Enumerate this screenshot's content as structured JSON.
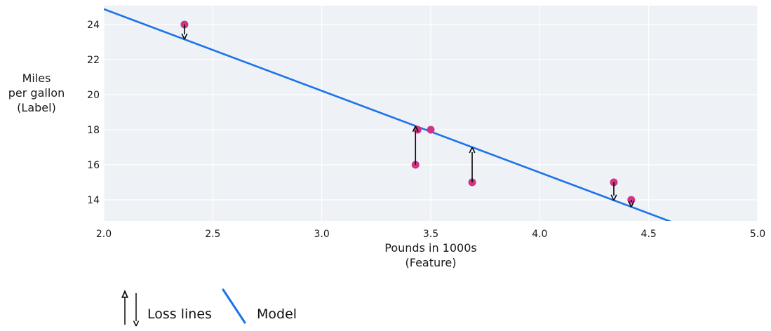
{
  "chart_data": {
    "type": "scatter",
    "title": "",
    "xlabel_lines": [
      "Pounds in 1000s",
      "(Feature)"
    ],
    "ylabel_lines": [
      "Miles",
      "per gallon",
      "(Label)"
    ],
    "xlim": [
      2.0,
      5.0
    ],
    "ylim": [
      12.8,
      25.08
    ],
    "grid": true,
    "x_ticks": [
      {
        "v": 2.0,
        "label": "2.0"
      },
      {
        "v": 2.5,
        "label": "2.5"
      },
      {
        "v": 3.0,
        "label": "3.0"
      },
      {
        "v": 3.5,
        "label": "3.5"
      },
      {
        "v": 4.0,
        "label": "4.0"
      },
      {
        "v": 4.5,
        "label": "4.5"
      },
      {
        "v": 5.0,
        "label": "5.0"
      }
    ],
    "y_ticks": [
      {
        "v": 14,
        "label": "14"
      },
      {
        "v": 16,
        "label": "16"
      },
      {
        "v": 18,
        "label": "18"
      },
      {
        "v": 20,
        "label": "20"
      },
      {
        "v": 22,
        "label": "22"
      },
      {
        "v": 24,
        "label": "24"
      }
    ],
    "points": [
      {
        "x": 2.37,
        "y": 24
      },
      {
        "x": 3.43,
        "y": 16
      },
      {
        "x": 3.44,
        "y": 18
      },
      {
        "x": 3.5,
        "y": 18
      },
      {
        "x": 3.69,
        "y": 15
      },
      {
        "x": 4.34,
        "y": 15
      },
      {
        "x": 4.42,
        "y": 14
      }
    ],
    "model_line": {
      "slope": -4.66,
      "intercept": 34.2,
      "x_start": 2.0,
      "x_end": 4.61
    },
    "loss_lines": [
      {
        "x": 2.37,
        "from_y": 24,
        "to_y": 23.16,
        "direction": "down"
      },
      {
        "x": 3.43,
        "from_y": 16,
        "to_y": 18.21,
        "direction": "up"
      },
      {
        "x": 3.69,
        "from_y": 15,
        "to_y": 17.0,
        "direction": "up"
      },
      {
        "x": 4.34,
        "from_y": 15,
        "to_y": 13.97,
        "direction": "down"
      },
      {
        "x": 4.42,
        "from_y": 14,
        "to_y": 13.6,
        "direction": "down"
      }
    ],
    "legend_position": "bottom-left"
  },
  "legend": {
    "loss_label": "Loss lines",
    "model_label": "Model"
  },
  "colors": {
    "plot_bg": "#eef1f6",
    "grid": "#ffffff",
    "model_line": "#1a73e8",
    "point": "#ce3585",
    "arrow": "#0a0a0a",
    "text": "#1a1a1a"
  }
}
